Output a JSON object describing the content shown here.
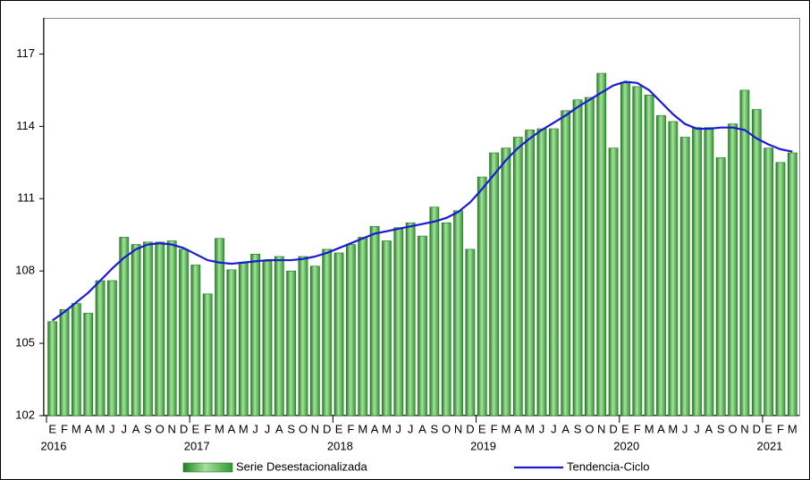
{
  "chart_data": {
    "type": "bar",
    "categories": [
      "E",
      "F",
      "M",
      "A",
      "M",
      "J",
      "J",
      "A",
      "S",
      "O",
      "N",
      "D",
      "E",
      "F",
      "M",
      "A",
      "M",
      "J",
      "J",
      "A",
      "S",
      "O",
      "N",
      "D",
      "E",
      "F",
      "M",
      "A",
      "M",
      "J",
      "J",
      "A",
      "S",
      "O",
      "N",
      "D",
      "E",
      "F",
      "M",
      "A",
      "M",
      "J",
      "J",
      "A",
      "S",
      "O",
      "N",
      "D",
      "E",
      "F",
      "M",
      "A",
      "M",
      "J",
      "J",
      "A",
      "S",
      "O",
      "N",
      "D",
      "E",
      "F",
      "M"
    ],
    "years": [
      "2016",
      null,
      null,
      null,
      null,
      null,
      null,
      null,
      null,
      null,
      null,
      null,
      "2017",
      null,
      null,
      null,
      null,
      null,
      null,
      null,
      null,
      null,
      null,
      null,
      "2018",
      null,
      null,
      null,
      null,
      null,
      null,
      null,
      null,
      null,
      null,
      null,
      "2019",
      null,
      null,
      null,
      null,
      null,
      null,
      null,
      null,
      null,
      null,
      null,
      "2020",
      null,
      null,
      null,
      null,
      null,
      null,
      null,
      null,
      null,
      null,
      null,
      "2021",
      null,
      null
    ],
    "series": [
      {
        "name": "Serie Desestacionalizada",
        "type": "bar",
        "color": "#2e9a2e",
        "values": [
          105.9,
          106.4,
          106.65,
          106.25,
          107.6,
          107.6,
          109.4,
          109.1,
          109.2,
          109.2,
          109.25,
          108.9,
          108.25,
          107.05,
          109.35,
          108.05,
          108.35,
          108.7,
          108.4,
          108.6,
          108.0,
          108.6,
          108.2,
          108.9,
          108.75,
          109.1,
          109.4,
          109.85,
          109.25,
          109.8,
          110.0,
          109.45,
          110.65,
          110.0,
          110.5,
          108.9,
          111.9,
          112.9,
          113.1,
          113.55,
          113.85,
          113.9,
          113.9,
          114.65,
          115.1,
          115.2,
          116.2,
          113.1,
          115.8,
          115.65,
          115.3,
          114.45,
          114.2,
          113.55,
          113.95,
          113.95,
          112.7,
          114.1,
          115.5,
          114.7,
          113.1,
          112.5,
          112.9
        ]
      },
      {
        "name": "Tendencia-Ciclo",
        "type": "line",
        "color": "#1a1ad6",
        "values": [
          105.95,
          106.3,
          106.7,
          107.1,
          107.6,
          108.1,
          108.55,
          108.9,
          109.1,
          109.15,
          109.1,
          108.95,
          108.7,
          108.45,
          108.35,
          108.3,
          108.35,
          108.4,
          108.45,
          108.45,
          108.45,
          108.5,
          108.6,
          108.75,
          108.95,
          109.15,
          109.35,
          109.55,
          109.65,
          109.75,
          109.85,
          109.95,
          110.05,
          110.2,
          110.45,
          110.85,
          111.4,
          112.0,
          112.6,
          113.1,
          113.5,
          113.85,
          114.15,
          114.45,
          114.8,
          115.1,
          115.4,
          115.7,
          115.85,
          115.8,
          115.5,
          115.0,
          114.5,
          114.1,
          113.9,
          113.9,
          113.95,
          113.95,
          113.85,
          113.5,
          113.25,
          113.05,
          112.95
        ]
      }
    ],
    "ylim": [
      102,
      118.5
    ],
    "yticks": [
      102,
      105,
      108,
      111,
      114,
      117
    ],
    "legend": "bottom"
  }
}
